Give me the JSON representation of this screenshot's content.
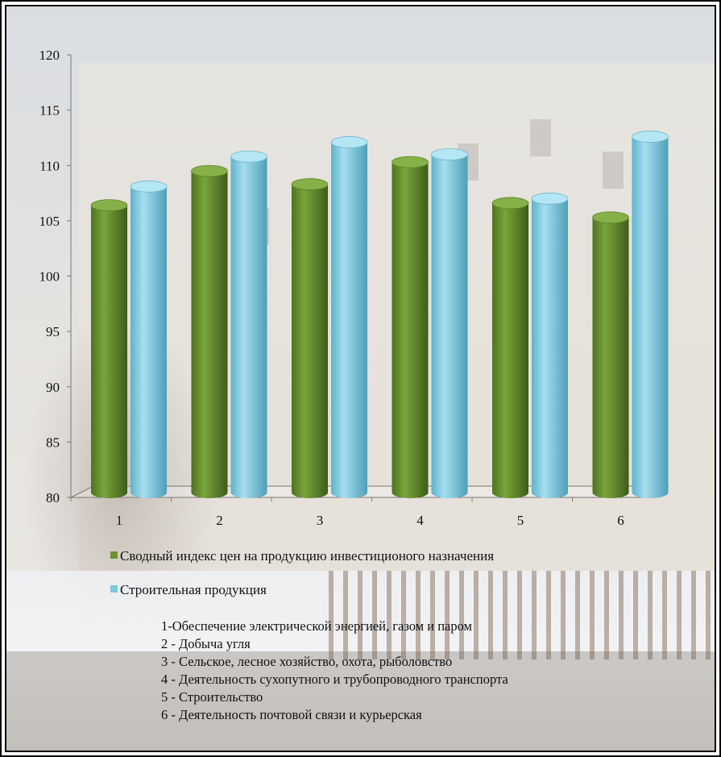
{
  "chart_data": {
    "type": "bar",
    "categories": [
      "1",
      "2",
      "3",
      "4",
      "5",
      "6"
    ],
    "series": [
      {
        "name": "Сводный индекс цен на продукцию инвестиционого назначения",
        "values": [
          106.4,
          109.5,
          108.3,
          110.3,
          106.6,
          105.3
        ],
        "color": "#6b9131"
      },
      {
        "name": "Строительная продукция",
        "values": [
          108.1,
          110.8,
          112.1,
          111.0,
          107.0,
          112.6
        ],
        "color": "#7ec8dc"
      }
    ],
    "ylim": [
      80,
      120
    ],
    "yticks": [
      80,
      85,
      90,
      95,
      100,
      105,
      110,
      115,
      120
    ],
    "title": "",
    "xlabel": "",
    "ylabel": "",
    "legend_placement": "bottom"
  },
  "notes": [
    "1-Обеспечение  электрической энергией, газом и паром",
    "2 - Добыча угля",
    "3 - Сельское, лесное хозяйство, охота, рыболовство",
    "4 - Деятельность сухопутного и трубопроводного транспорта",
    "5 - Строительство",
    "6 - Деятельность почтовой связи и курьерская"
  ]
}
